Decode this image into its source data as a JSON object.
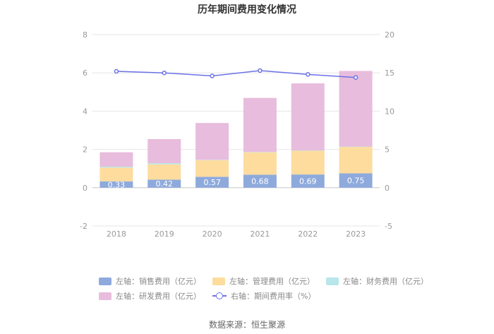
{
  "chart_data": {
    "type": "bar",
    "stacked": true,
    "title": "历年期间费用变化情况",
    "categories": [
      "2018",
      "2019",
      "2020",
      "2021",
      "2022",
      "2023"
    ],
    "left_axis": {
      "range": [
        -2,
        8
      ],
      "ticks": [
        "-2",
        "0",
        "2",
        "4",
        "6",
        "8"
      ]
    },
    "right_axis": {
      "range": [
        -5,
        20
      ],
      "ticks": [
        "-5",
        "0",
        "5",
        "10",
        "15",
        "20"
      ]
    },
    "series": [
      {
        "name": "左轴：销售费用（亿元）",
        "axis": "left",
        "color": "#8eaadc",
        "values": [
          0.33,
          0.42,
          0.57,
          0.68,
          0.69,
          0.75
        ],
        "labels": [
          "0.33",
          "0.42",
          "0.57",
          "0.68",
          "0.69",
          "0.75"
        ]
      },
      {
        "name": "左轴：管理费用（亿元）",
        "axis": "left",
        "color": "#fddc9e",
        "values": [
          0.72,
          0.8,
          0.87,
          1.17,
          1.24,
          1.38
        ]
      },
      {
        "name": "左轴：财务费用（亿元）",
        "axis": "left",
        "color": "#b8e6ea",
        "values": [
          0.05,
          0.06,
          0.02,
          0.02,
          0.02,
          0.02
        ]
      },
      {
        "name": "左轴：研发费用（亿元）",
        "axis": "left",
        "color": "#e8bcdc",
        "values": [
          0.75,
          1.26,
          1.92,
          2.82,
          3.5,
          3.95
        ]
      },
      {
        "name": "右轴：期间费用率（%）",
        "axis": "right",
        "type": "line",
        "color": "#6b72e6",
        "values": [
          15.2,
          15.0,
          14.6,
          15.3,
          14.8,
          14.4
        ]
      }
    ],
    "legend_position": "bottom",
    "source": "数据来源：恒生聚源"
  }
}
